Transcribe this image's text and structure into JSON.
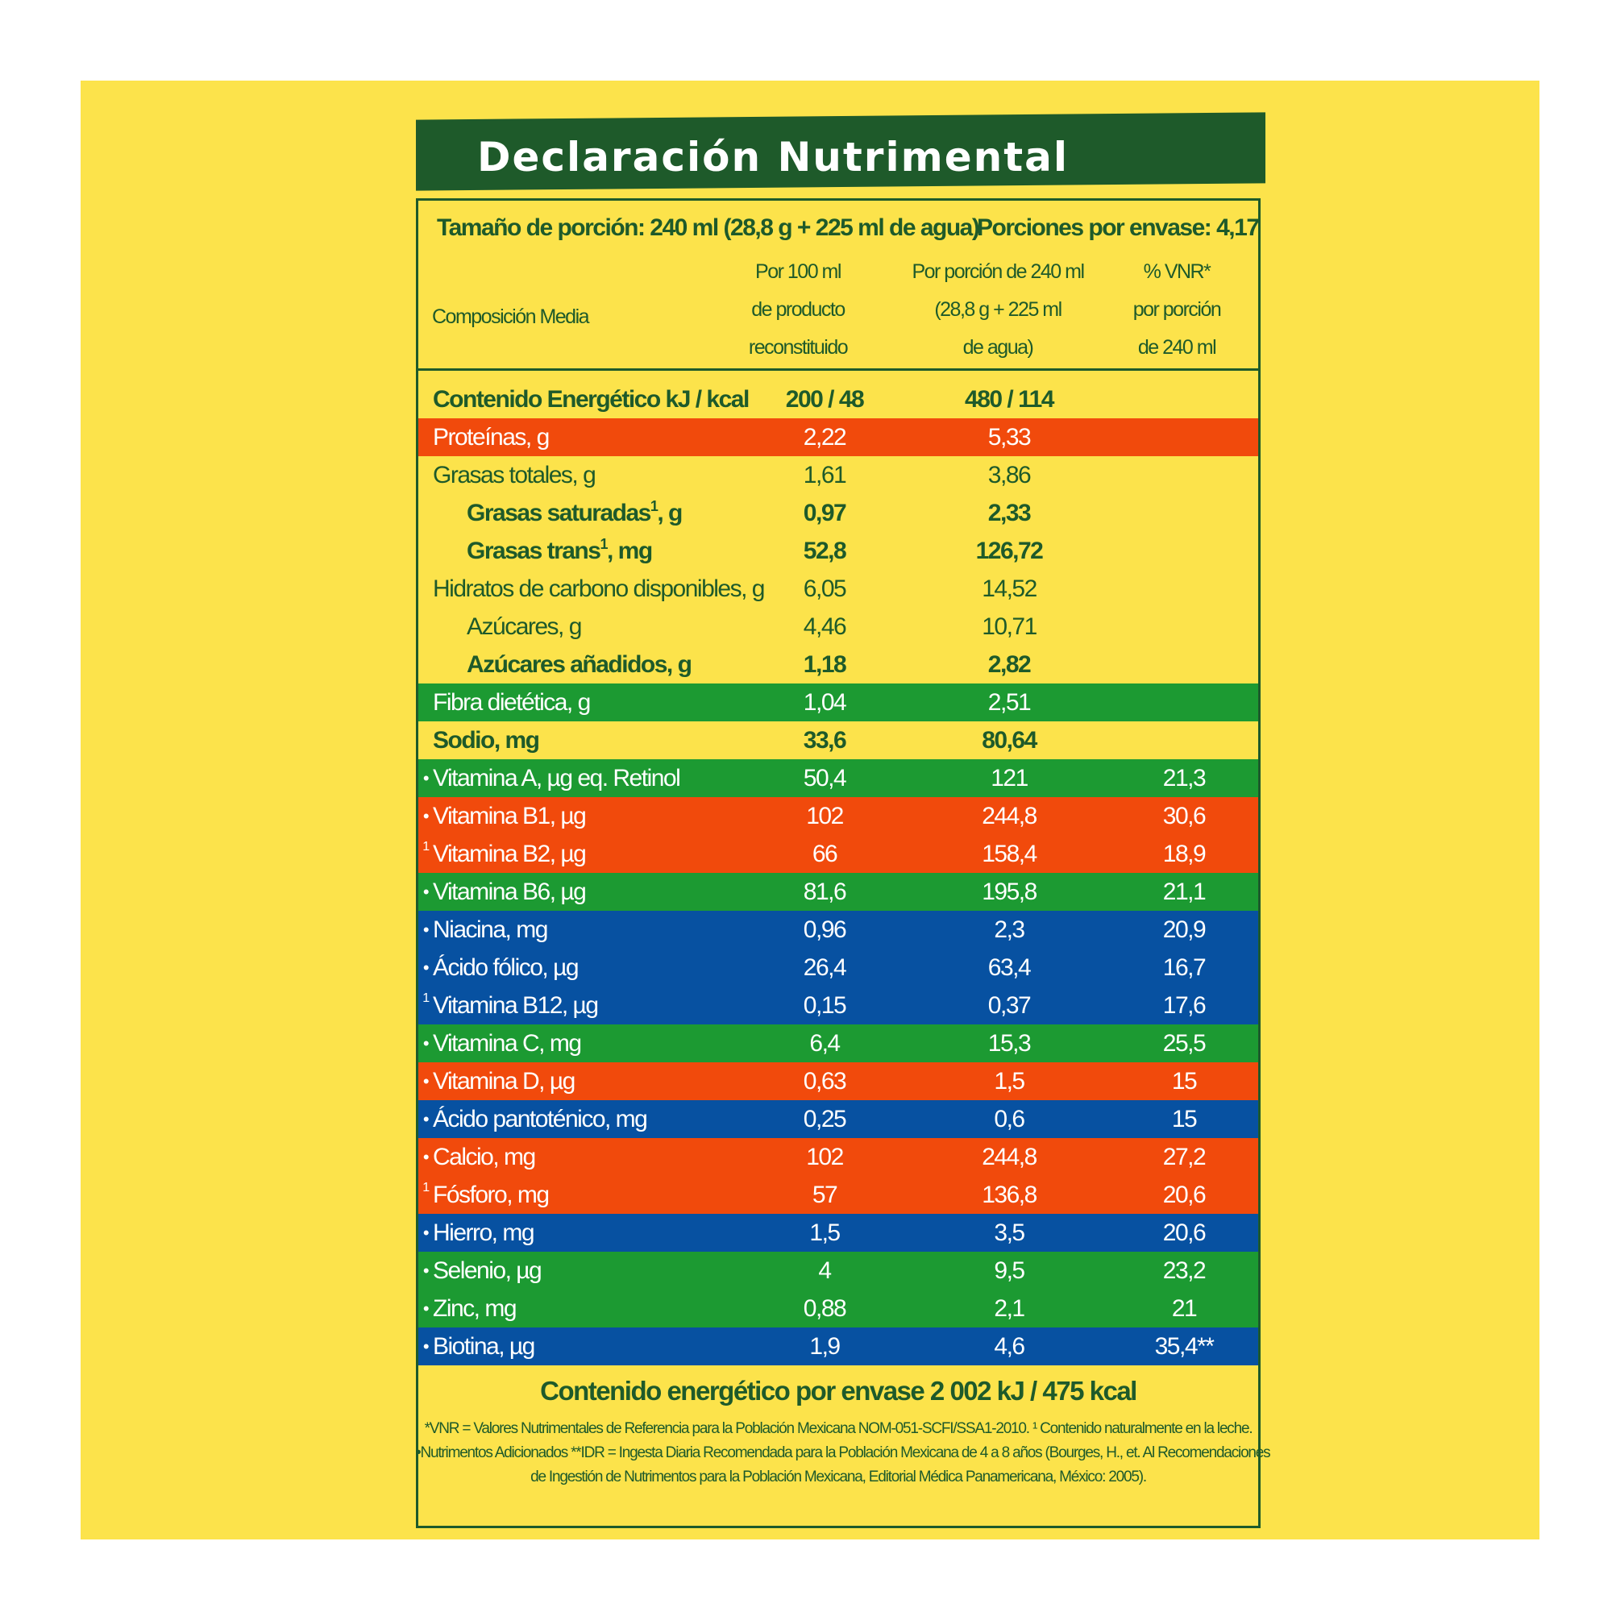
{
  "colors": {
    "panel": "#FCE34B",
    "dark_green": "#1E5A2A",
    "orange": "#F14A0C",
    "green": "#1C9A32",
    "blue": "#0751A1"
  },
  "title": "Declaración Nutrimental",
  "serving_size": "Tamaño de porción: 240 ml (28,8 g + 225 ml de agua)",
  "portions": "Porciones por envase: 4,17",
  "headers": {
    "composition": "Composición Media",
    "per100": [
      "Por 100 ml",
      "de producto",
      "reconstituido"
    ],
    "per_portion": [
      "Por porción de 240 ml",
      "(28,8 g + 225 ml",
      "de agua)"
    ],
    "vnr": [
      "% VNR*",
      "por porción",
      "de 240 ml"
    ]
  },
  "rows": [
    {
      "mark": "",
      "name": "Contenido Energético kJ / kcal",
      "sup": "",
      "suffix": "",
      "per100": "200 / 48",
      "portion": "480 / 114",
      "vnr": "",
      "bg": "none",
      "bold": true,
      "indent": false
    },
    {
      "mark": "",
      "name": "Proteínas, g",
      "sup": "",
      "suffix": "",
      "per100": "2,22",
      "portion": "5,33",
      "vnr": "",
      "bg": "orange",
      "bold": false,
      "indent": false
    },
    {
      "mark": "",
      "name": "Grasas totales, g",
      "sup": "",
      "suffix": "",
      "per100": "1,61",
      "portion": "3,86",
      "vnr": "",
      "bg": "none",
      "bold": false,
      "indent": false
    },
    {
      "mark": "",
      "name": "Grasas saturadas",
      "sup": "1",
      "suffix": ", g",
      "per100": "0,97",
      "portion": "2,33",
      "vnr": "",
      "bg": "none",
      "bold": true,
      "indent": true
    },
    {
      "mark": "",
      "name": "Grasas trans",
      "sup": "1",
      "suffix": ", mg",
      "per100": "52,8",
      "portion": "126,72",
      "vnr": "",
      "bg": "none",
      "bold": true,
      "indent": true
    },
    {
      "mark": "",
      "name": "Hidratos de carbono disponibles, g",
      "sup": "",
      "suffix": "",
      "per100": "6,05",
      "portion": "14,52",
      "vnr": "",
      "bg": "none",
      "bold": false,
      "indent": false
    },
    {
      "mark": "",
      "name": "Azúcares, g",
      "sup": "",
      "suffix": "",
      "per100": "4,46",
      "portion": "10,71",
      "vnr": "",
      "bg": "none",
      "bold": false,
      "indent": true
    },
    {
      "mark": "",
      "name": "Azúcares añadidos, g",
      "sup": "",
      "suffix": "",
      "per100": "1,18",
      "portion": "2,82",
      "vnr": "",
      "bg": "none",
      "bold": true,
      "indent": true
    },
    {
      "mark": "",
      "name": "Fibra dietética, g",
      "sup": "",
      "suffix": "",
      "per100": "1,04",
      "portion": "2,51",
      "vnr": "",
      "bg": "green",
      "bold": false,
      "indent": false
    },
    {
      "mark": "",
      "name": "Sodio, mg",
      "sup": "",
      "suffix": "",
      "per100": "33,6",
      "portion": "80,64",
      "vnr": "",
      "bg": "none",
      "bold": true,
      "indent": false
    },
    {
      "mark": "•",
      "name": "Vitamina A, µg eq. Retinol",
      "sup": "",
      "suffix": "",
      "per100": "50,4",
      "portion": "121",
      "vnr": "21,3",
      "bg": "green",
      "bold": false,
      "indent": false
    },
    {
      "mark": "•",
      "name": "Vitamina B1,  µg",
      "sup": "",
      "suffix": "",
      "per100": "102",
      "portion": "244,8",
      "vnr": "30,6",
      "bg": "orange",
      "bold": false,
      "indent": false
    },
    {
      "mark": "1",
      "name": "Vitamina B2,  µg",
      "sup": "",
      "suffix": "",
      "per100": "66",
      "portion": "158,4",
      "vnr": "18,9",
      "bg": "orange",
      "bold": false,
      "indent": false
    },
    {
      "mark": "•",
      "name": "Vitamina B6,  µg",
      "sup": "",
      "suffix": "",
      "per100": "81,6",
      "portion": "195,8",
      "vnr": "21,1",
      "bg": "green",
      "bold": false,
      "indent": false
    },
    {
      "mark": "•",
      "name": "Niacina, mg",
      "sup": "",
      "suffix": "",
      "per100": "0,96",
      "portion": "2,3",
      "vnr": "20,9",
      "bg": "blue",
      "bold": false,
      "indent": false
    },
    {
      "mark": "•",
      "name": "Ácido fólico,  µg",
      "sup": "",
      "suffix": "",
      "per100": "26,4",
      "portion": "63,4",
      "vnr": "16,7",
      "bg": "blue",
      "bold": false,
      "indent": false
    },
    {
      "mark": "1",
      "name": "Vitamina B12,  µg",
      "sup": "",
      "suffix": "",
      "per100": "0,15",
      "portion": "0,37",
      "vnr": "17,6",
      "bg": "blue",
      "bold": false,
      "indent": false
    },
    {
      "mark": "•",
      "name": "Vitamina C,  mg",
      "sup": "",
      "suffix": "",
      "per100": "6,4",
      "portion": "15,3",
      "vnr": "25,5",
      "bg": "green",
      "bold": false,
      "indent": false
    },
    {
      "mark": "•",
      "name": "Vitamina D,  µg",
      "sup": "",
      "suffix": "",
      "per100": "0,63",
      "portion": "1,5",
      "vnr": "15",
      "bg": "orange",
      "bold": false,
      "indent": false
    },
    {
      "mark": "•",
      "name": "Ácido pantoténico,  mg",
      "sup": "",
      "suffix": "",
      "per100": "0,25",
      "portion": "0,6",
      "vnr": "15",
      "bg": "blue",
      "bold": false,
      "indent": false
    },
    {
      "mark": "•",
      "name": "Calcio, mg",
      "sup": "",
      "suffix": "",
      "per100": "102",
      "portion": "244,8",
      "vnr": "27,2",
      "bg": "orange",
      "bold": false,
      "indent": false
    },
    {
      "mark": "1",
      "name": "Fósforo, mg",
      "sup": "",
      "suffix": "",
      "per100": "57",
      "portion": "136,8",
      "vnr": "20,6",
      "bg": "orange",
      "bold": false,
      "indent": false
    },
    {
      "mark": "•",
      "name": "Hierro, mg",
      "sup": "",
      "suffix": "",
      "per100": "1,5",
      "portion": "3,5",
      "vnr": "20,6",
      "bg": "blue",
      "bold": false,
      "indent": false
    },
    {
      "mark": "•",
      "name": "Selenio,  µg",
      "sup": "",
      "suffix": "",
      "per100": "4",
      "portion": "9,5",
      "vnr": "23,2",
      "bg": "green",
      "bold": false,
      "indent": false
    },
    {
      "mark": "•",
      "name": "Zinc, mg",
      "sup": "",
      "suffix": "",
      "per100": "0,88",
      "portion": "2,1",
      "vnr": "21",
      "bg": "green",
      "bold": false,
      "indent": false
    },
    {
      "mark": "•",
      "name": "Biotina,  µg",
      "sup": "",
      "suffix": "",
      "per100": "1,9",
      "portion": "4,6",
      "vnr": "35,4**",
      "bg": "blue",
      "bold": false,
      "indent": false
    }
  ],
  "total_energy": "Contenido energético por envase 2 002 kJ / 475 kcal",
  "footnotes": [
    "*VNR = Valores Nutrimentales de Referencia para la Población Mexicana NOM-051-SCFI/SSA1-2010. ¹ Contenido naturalmente en la leche.",
    "•Nutrimentos Adicionados **IDR = Ingesta Diaria Recomendada para la Población Mexicana de 4 a 8 años (Bourges, H., et. Al Recomendaciones",
    "de Ingestión de Nutrimentos para la Población Mexicana, Editorial Médica Panamericana, México: 2005)."
  ]
}
